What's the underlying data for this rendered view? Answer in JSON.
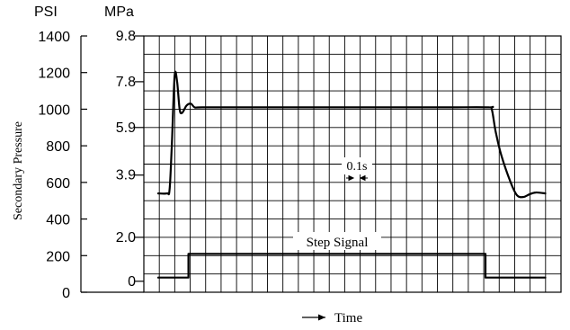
{
  "chart_data": {
    "type": "line",
    "title": "",
    "ylabel": "Secondary Pressure",
    "xlabel": "Time",
    "psi_axis": {
      "label": "PSI",
      "ticks": [
        "1400",
        "1200",
        "1000",
        "800",
        "600",
        "400",
        "200",
        "0"
      ],
      "range": [
        0,
        1400
      ]
    },
    "mpa_axis": {
      "label": "MPa",
      "ticks": [
        {
          "label": "9.8",
          "psi": 1400
        },
        {
          "label": "7.8",
          "psi": 1150
        },
        {
          "label": "5.9",
          "psi": 900
        },
        {
          "label": "3.9",
          "psi": 640
        },
        {
          "label": "2.0",
          "psi": 300
        },
        {
          "label": "0",
          "psi": 60
        }
      ]
    },
    "scale_annotation": "0.1s",
    "series": [
      {
        "name": "",
        "points": [
          [
            0.0,
            540
          ],
          [
            0.14,
            540
          ],
          [
            0.18,
            560
          ],
          [
            0.215,
            800
          ],
          [
            0.26,
            1180
          ],
          [
            0.3,
            1150
          ],
          [
            0.34,
            1000
          ],
          [
            0.38,
            980
          ],
          [
            0.45,
            1020
          ],
          [
            0.52,
            1030
          ],
          [
            0.58,
            1010
          ],
          [
            0.7,
            1010
          ],
          [
            1.5,
            1010
          ],
          [
            3.0,
            1010
          ],
          [
            4.5,
            1010
          ],
          [
            5.25,
            1010
          ],
          [
            5.3,
            1000
          ],
          [
            5.36,
            880
          ],
          [
            5.45,
            750
          ],
          [
            5.6,
            600
          ],
          [
            5.7,
            530
          ],
          [
            5.8,
            520
          ],
          [
            5.9,
            535
          ],
          [
            6.0,
            545
          ],
          [
            6.15,
            540
          ]
        ]
      },
      {
        "name": "Step Signal",
        "points": [
          [
            0.0,
            80
          ],
          [
            0.48,
            80
          ],
          [
            0.48,
            210
          ],
          [
            5.2,
            210
          ],
          [
            5.2,
            80
          ],
          [
            6.15,
            80
          ]
        ]
      }
    ],
    "x_range": [
      0,
      6.4
    ],
    "grid": true,
    "legend": "none"
  }
}
